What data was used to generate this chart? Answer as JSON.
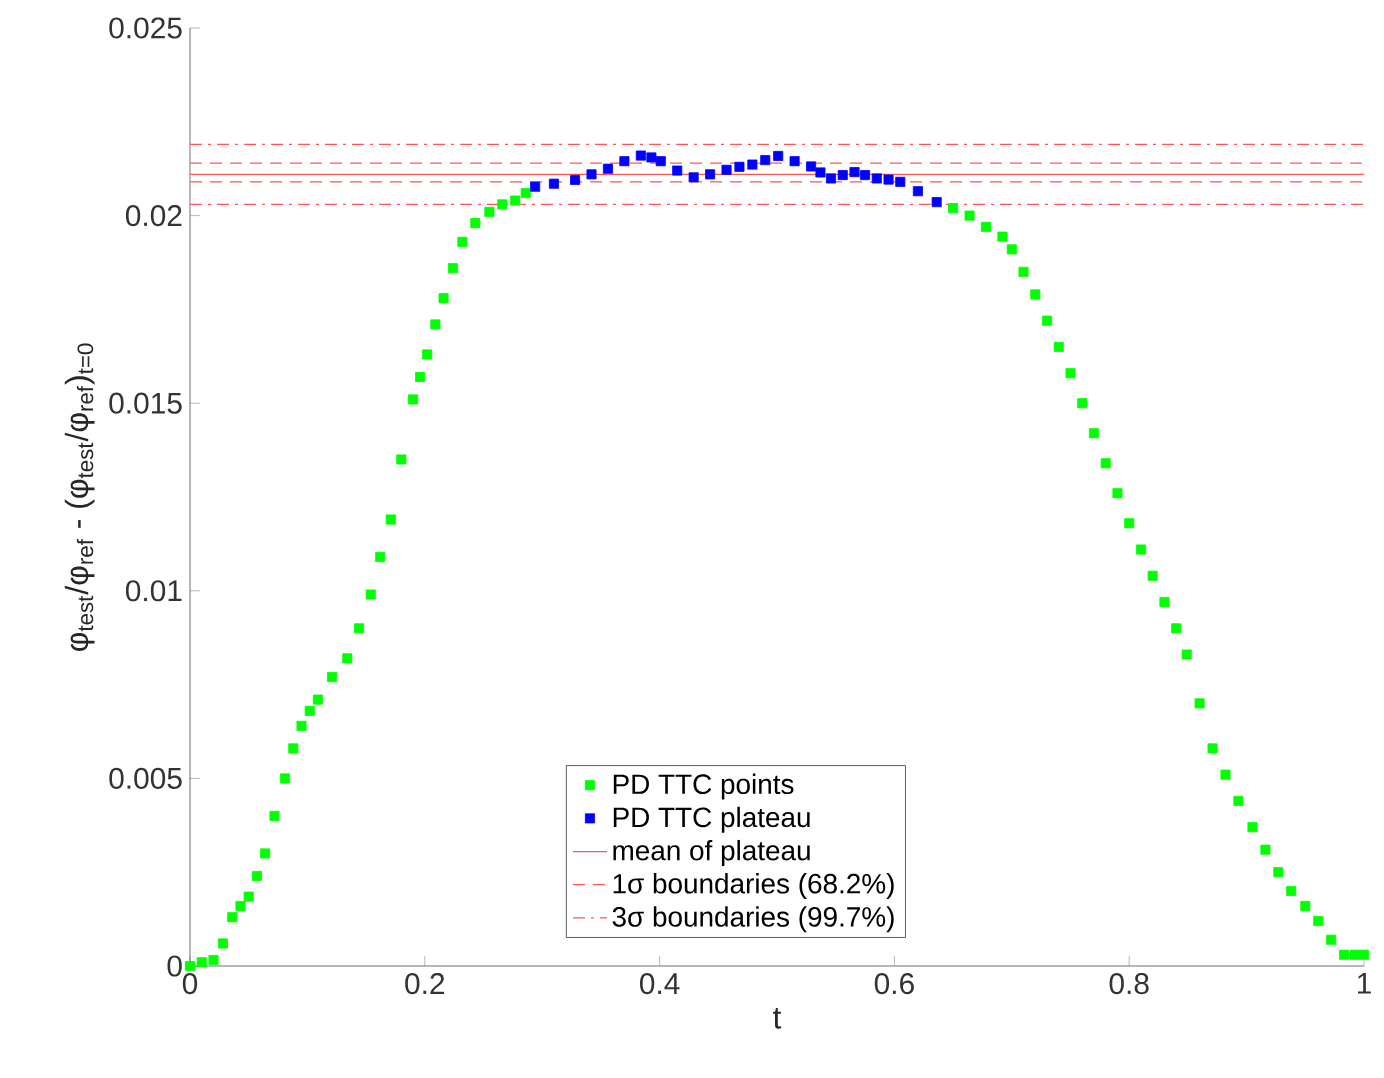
{
  "chart_data": {
    "type": "scatter",
    "xlabel": "t",
    "ylabel": "φ$_{test}$/φ$_{ref}$ - (φ$_{test}$/φ$_{ref}$)$_{t=0}$",
    "xlim": [
      0,
      1
    ],
    "ylim": [
      0,
      0.025
    ],
    "xticks": [
      0,
      0.2,
      0.4,
      0.6,
      0.8,
      1
    ],
    "yticks": [
      0,
      0.005,
      0.01,
      0.015,
      0.02,
      0.025
    ],
    "grid": false,
    "legend": "bottom",
    "marker": "square",
    "series": [
      {
        "name": "PD TTC points",
        "color": "#00ff00",
        "x": [
          0,
          0.01,
          0.02,
          0.028,
          0.036,
          0.043,
          0.05,
          0.057,
          0.064,
          0.072,
          0.081,
          0.088,
          0.095,
          0.102,
          0.109,
          0.121,
          0.134,
          0.144,
          0.154,
          0.162,
          0.171,
          0.18,
          0.19,
          0.196,
          0.202,
          0.209,
          0.216,
          0.224,
          0.232,
          0.243,
          0.255,
          0.266,
          0.277,
          0.286,
          0.65,
          0.664,
          0.678,
          0.692,
          0.7,
          0.71,
          0.72,
          0.73,
          0.74,
          0.75,
          0.76,
          0.77,
          0.78,
          0.79,
          0.8,
          0.81,
          0.82,
          0.83,
          0.84,
          0.849,
          0.86,
          0.871,
          0.882,
          0.893,
          0.905,
          0.916,
          0.927,
          0.938,
          0.95,
          0.961,
          0.972,
          0.983,
          0.992,
          1
        ],
        "values": [
          0,
          0.0001,
          0.00016,
          0.0006,
          0.0013,
          0.0016,
          0.00185,
          0.0024,
          0.003,
          0.004,
          0.005,
          0.0058,
          0.0064,
          0.0068,
          0.0071,
          0.0077,
          0.0082,
          0.009,
          0.0099,
          0.0109,
          0.0119,
          0.0135,
          0.0151,
          0.0157,
          0.0163,
          0.0171,
          0.0178,
          0.0186,
          0.0193,
          0.0198,
          0.0201,
          0.0203,
          0.0204,
          0.0206,
          0.0202,
          0.02,
          0.0197,
          0.01944,
          0.0191,
          0.0185,
          0.0179,
          0.0172,
          0.0165,
          0.0158,
          0.015,
          0.0142,
          0.0134,
          0.0126,
          0.0118,
          0.0111,
          0.0104,
          0.0097,
          0.009,
          0.0083,
          0.007,
          0.0058,
          0.0051,
          0.0044,
          0.0037,
          0.0031,
          0.0025,
          0.002,
          0.0016,
          0.0012,
          0.0007,
          0.0003,
          0.0003,
          0.0003
        ]
      },
      {
        "name": "PD TTC plateau",
        "color": "#0000ff",
        "x": [
          0.294,
          0.31,
          0.328,
          0.342,
          0.356,
          0.37,
          0.384,
          0.393,
          0.401,
          0.415,
          0.429,
          0.443,
          0.457,
          0.468,
          0.479,
          0.49,
          0.501,
          0.515,
          0.529,
          0.537,
          0.546,
          0.556,
          0.566,
          0.575,
          0.585,
          0.595,
          0.605,
          0.62,
          0.636
        ],
        "values": [
          0.02077,
          0.02085,
          0.02095,
          0.0211,
          0.02125,
          0.02145,
          0.0216,
          0.02155,
          0.02145,
          0.0212,
          0.02102,
          0.0211,
          0.02122,
          0.0213,
          0.02136,
          0.02148,
          0.02159,
          0.02145,
          0.02131,
          0.02115,
          0.02099,
          0.02108,
          0.02116,
          0.02108,
          0.02099,
          0.02096,
          0.0209,
          0.02065,
          0.02036
        ]
      }
    ],
    "ref_lines": [
      {
        "axis": "y",
        "value": 0.0211,
        "label": "mean of plateau",
        "color": "#ff5555",
        "line_style": "solid"
      },
      {
        "axis": "y",
        "value": 0.0214,
        "label": "1σ boundaries (68.2%)",
        "color": "#ff5555",
        "line_style": "dashed"
      },
      {
        "axis": "y",
        "value": 0.0219,
        "label": "3σ boundaries (99.7%)",
        "color": "#ff5555",
        "line_style": "dashdot"
      },
      {
        "axis": "y",
        "value": 0.0209,
        "color": "#ff5555",
        "line_style": "dashed"
      },
      {
        "axis": "y",
        "value": 0.0203,
        "color": "#ff5555",
        "line_style": "dashdot"
      }
    ]
  }
}
